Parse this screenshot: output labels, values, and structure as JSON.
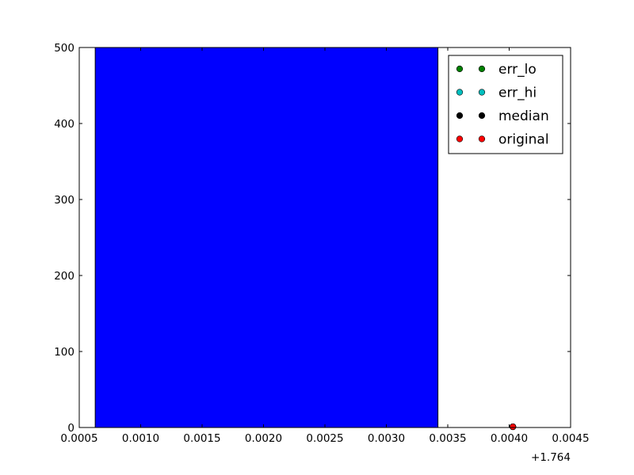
{
  "chart_data": {
    "type": "bar",
    "title": "",
    "xlabel": "",
    "ylabel": "",
    "x_offset_label": "+1.764",
    "xlim": [
      0.0005,
      0.0045
    ],
    "ylim": [
      0,
      500
    ],
    "xticks": [
      {
        "value": 0.0005,
        "label": "0.0005"
      },
      {
        "value": 0.001,
        "label": "0.0010"
      },
      {
        "value": 0.0015,
        "label": "0.0015"
      },
      {
        "value": 0.002,
        "label": "0.0020"
      },
      {
        "value": 0.0025,
        "label": "0.0025"
      },
      {
        "value": 0.003,
        "label": "0.0030"
      },
      {
        "value": 0.0035,
        "label": "0.0035"
      },
      {
        "value": 0.004,
        "label": "0.0040"
      },
      {
        "value": 0.0045,
        "label": "0.0045"
      }
    ],
    "yticks": [
      {
        "value": 0,
        "label": "0"
      },
      {
        "value": 100,
        "label": "100"
      },
      {
        "value": 200,
        "label": "200"
      },
      {
        "value": 300,
        "label": "300"
      },
      {
        "value": 400,
        "label": "400"
      },
      {
        "value": 500,
        "label": "500"
      }
    ],
    "bars": [
      {
        "x_start": 0.00063,
        "x_end": 0.00342,
        "value": 500,
        "color": "#0000ff"
      }
    ],
    "series": [
      {
        "name": "err_lo",
        "color": "#008000",
        "points": [
          {
            "x": 0.00403,
            "y": 1
          }
        ]
      },
      {
        "name": "err_hi",
        "color": "#00bfbf",
        "points": [
          {
            "x": 0.00403,
            "y": 1
          }
        ]
      },
      {
        "name": "median",
        "color": "#000000",
        "points": [
          {
            "x": 0.00403,
            "y": 1
          }
        ]
      },
      {
        "name": "original",
        "color": "#ff0000",
        "points": [
          {
            "x": 0.00403,
            "y": 1
          }
        ]
      }
    ],
    "legend_position": "top-right",
    "grid": false
  }
}
